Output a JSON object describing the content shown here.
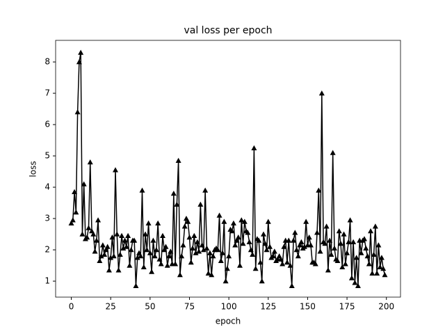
{
  "chart_data": {
    "type": "line",
    "title": "val loss per epoch",
    "x_label": "epoch",
    "y_label": "loss",
    "x": [
      0,
      1,
      2,
      3,
      4,
      5,
      6,
      7,
      8,
      9,
      10,
      11,
      12,
      13,
      14,
      15,
      16,
      17,
      18,
      19,
      20,
      21,
      22,
      23,
      24,
      25,
      26,
      27,
      28,
      29,
      30,
      31,
      32,
      33,
      34,
      35,
      36,
      37,
      38,
      39,
      40,
      41,
      42,
      43,
      44,
      45,
      46,
      47,
      48,
      49,
      50,
      51,
      52,
      53,
      54,
      55,
      56,
      57,
      58,
      59,
      60,
      61,
      62,
      63,
      64,
      65,
      66,
      67,
      68,
      69,
      70,
      71,
      72,
      73,
      74,
      75,
      76,
      77,
      78,
      79,
      80,
      81,
      82,
      83,
      84,
      85,
      86,
      87,
      88,
      89,
      90,
      91,
      92,
      93,
      94,
      95,
      96,
      97,
      98,
      99,
      100,
      101,
      102,
      103,
      104,
      105,
      106,
      107,
      108,
      109,
      110,
      111,
      112,
      113,
      114,
      115,
      116,
      117,
      118,
      119,
      120,
      121,
      122,
      123,
      124,
      125,
      126,
      127,
      128,
      129,
      130,
      131,
      132,
      133,
      134,
      135,
      136,
      137,
      138,
      139,
      140,
      141,
      142,
      143,
      144,
      145,
      146,
      147,
      148,
      149,
      150,
      151,
      152,
      153,
      154,
      155,
      156,
      157,
      158,
      159,
      160,
      161,
      162,
      163,
      164,
      165,
      166,
      167,
      168,
      169,
      170,
      171,
      172,
      173,
      174,
      175,
      176,
      177,
      178,
      179,
      180,
      181,
      182,
      183,
      184,
      185,
      186,
      187,
      188,
      189,
      190,
      191,
      192,
      193,
      194,
      195,
      196,
      197,
      198,
      199
    ],
    "series": [
      {
        "color": "#000000",
        "marker": "triangle",
        "values": [
          2.85,
          2.95,
          3.85,
          3.2,
          6.4,
          8.0,
          8.3,
          2.5,
          4.1,
          2.35,
          2.4,
          2.7,
          4.8,
          2.6,
          2.5,
          1.95,
          2.3,
          2.95,
          1.65,
          1.8,
          2.15,
          1.85,
          2.0,
          2.1,
          1.35,
          1.75,
          2.4,
          1.8,
          4.55,
          2.5,
          1.35,
          1.85,
          2.45,
          2.05,
          2.3,
          2.1,
          2.45,
          1.5,
          2.0,
          2.3,
          2.3,
          0.85,
          1.75,
          1.9,
          1.8,
          3.9,
          1.45,
          2.5,
          2.0,
          2.85,
          1.9,
          1.3,
          2.3,
          1.8,
          2.0,
          2.85,
          1.7,
          1.55,
          2.45,
          2.0,
          2.1,
          1.5,
          1.8,
          1.95,
          1.55,
          3.8,
          1.55,
          3.45,
          4.85,
          1.2,
          1.8,
          2.15,
          2.75,
          3.0,
          2.9,
          2.4,
          1.6,
          2.05,
          2.45,
          1.9,
          2.25,
          1.95,
          3.45,
          2.15,
          2.0,
          3.9,
          2.05,
          1.25,
          1.9,
          1.2,
          1.8,
          2.0,
          2.05,
          2.0,
          3.1,
          1.65,
          1.9,
          2.9,
          1.0,
          1.4,
          1.8,
          2.65,
          2.6,
          2.85,
          2.15,
          2.3,
          2.4,
          1.5,
          2.95,
          2.2,
          2.9,
          2.6,
          2.55,
          2.25,
          2.0,
          1.85,
          5.25,
          1.4,
          2.35,
          2.3,
          1.6,
          1.0,
          2.5,
          2.2,
          2.0,
          2.9,
          2.1,
          1.75,
          1.8,
          1.95,
          1.65,
          1.7,
          1.8,
          1.7,
          1.55,
          2.1,
          2.3,
          1.6,
          2.3,
          1.5,
          0.85,
          2.3,
          2.55,
          2.0,
          1.8,
          2.15,
          2.25,
          2.05,
          2.1,
          2.9,
          2.15,
          2.4,
          2.15,
          1.6,
          1.6,
          1.55,
          2.55,
          3.9,
          1.95,
          7.0,
          2.25,
          2.2,
          2.75,
          1.35,
          2.3,
          1.85,
          5.1,
          2.05,
          1.7,
          1.65,
          2.6,
          2.2,
          1.45,
          2.5,
          1.55,
          1.9,
          2.25,
          2.95,
          1.1,
          2.25,
          0.95,
          1.75,
          0.85,
          2.3,
          1.9,
          2.3,
          2.35,
          2.05,
          1.8,
          1.55,
          2.6,
          1.25,
          1.85,
          2.75,
          1.25,
          2.15,
          1.45,
          1.75,
          1.4,
          1.2
        ]
      }
    ],
    "xlim": [
      -9.95,
      208.95
    ],
    "ylim": [
      0.49,
      8.69
    ],
    "xticks": [
      0,
      25,
      50,
      75,
      100,
      125,
      150,
      175,
      200
    ],
    "yticks": [
      1,
      2,
      3,
      4,
      5,
      6,
      7,
      8
    ]
  }
}
